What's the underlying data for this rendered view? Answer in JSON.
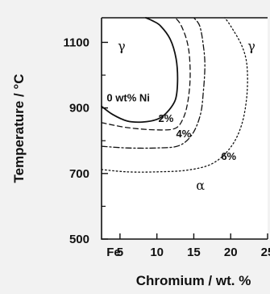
{
  "chart_data": {
    "type": "line",
    "title": "",
    "xlabel": "Chromium / wt. %",
    "ylabel": "Temperature / °C",
    "xlim": [
      2.5,
      25
    ],
    "ylim": [
      500,
      1175
    ],
    "x_ticks": [
      5,
      10,
      15,
      20,
      25
    ],
    "x_tick_labels": [
      "5",
      "10",
      "15",
      "20",
      "25"
    ],
    "x_origin_label": "Fe",
    "y_ticks": [
      500,
      700,
      900,
      1100
    ],
    "y_tick_labels": [
      "500",
      "700",
      "900",
      "1100"
    ],
    "grid": false,
    "legend": "none",
    "series": [
      {
        "name": "0 wt% Ni",
        "style": "solid",
        "x": [
          2.5,
          4,
          6,
          8,
          10,
          11.3,
          12.5,
          12.8,
          12.6,
          11.8,
          10.5,
          9.5,
          8.5
        ],
        "y": [
          905,
          880,
          860,
          857,
          865,
          885,
          925,
          980,
          1050,
          1110,
          1150,
          1165,
          1175
        ]
      },
      {
        "name": "2%",
        "style": "dashed",
        "x": [
          2.5,
          6,
          10,
          12.5,
          13.6,
          14.2,
          14.5,
          14.4,
          14,
          13.2,
          12.5
        ],
        "y": [
          855,
          840,
          833,
          838,
          870,
          920,
          990,
          1060,
          1110,
          1155,
          1175
        ]
      },
      {
        "name": "4%",
        "style": "dash-dot",
        "x": [
          2.5,
          6,
          10,
          13,
          14.8,
          15.9,
          16.3,
          16.5,
          16.3,
          15.8,
          15
        ],
        "y": [
          783,
          778,
          778,
          785,
          820,
          880,
          950,
          1030,
          1090,
          1150,
          1175
        ]
      },
      {
        "name": "6%",
        "style": "dotted",
        "x": [
          2.5,
          6,
          10,
          14,
          17.5,
          20,
          21.5,
          22.2,
          22.2,
          21.5,
          20,
          19.2
        ],
        "y": [
          712,
          705,
          705,
          710,
          730,
          780,
          850,
          940,
          1030,
          1090,
          1150,
          1175
        ]
      }
    ],
    "annotations": [
      {
        "text": "γ",
        "x": 4.7,
        "y": 1075
      },
      {
        "text": "γ",
        "x": 22.3,
        "y": 1075
      },
      {
        "text": "α",
        "x": 15.3,
        "y": 650
      },
      {
        "text": "0 wt% Ni",
        "x": 3.2,
        "y": 920
      },
      {
        "text": "2%",
        "x": 10.2,
        "y": 857
      },
      {
        "text": "4%",
        "x": 12.6,
        "y": 810
      },
      {
        "text": "6%",
        "x": 18.7,
        "y": 742
      }
    ]
  }
}
